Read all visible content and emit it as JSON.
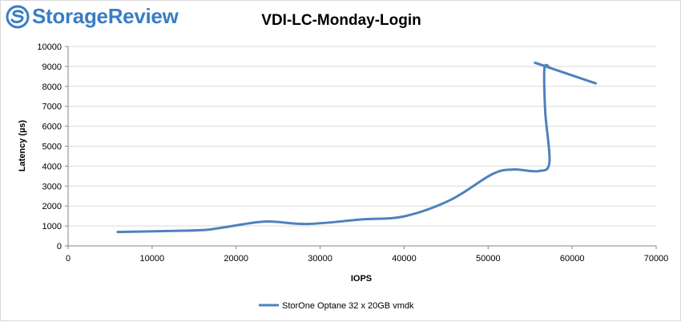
{
  "brand": {
    "name": "StorageReview",
    "logo_icon": "storagereview-logo-icon",
    "color": "#3a7dc4"
  },
  "chart_data": {
    "type": "line",
    "title": "VDI-LC-Monday-Login",
    "xlabel": "IOPS",
    "ylabel": "Latency (µs)",
    "xlim": [
      0,
      70000
    ],
    "ylim": [
      0,
      10000
    ],
    "xticks": [
      0,
      10000,
      20000,
      30000,
      40000,
      50000,
      60000,
      70000
    ],
    "yticks": [
      0,
      1000,
      2000,
      3000,
      4000,
      5000,
      6000,
      7000,
      8000,
      9000,
      10000
    ],
    "grid": "horizontal",
    "legend_position": "bottom",
    "series": [
      {
        "name": "StorOne Optane 32 x 20GB vmdk",
        "color": "#4f81bd",
        "x": [
          5900,
          11000,
          16000,
          19000,
          23500,
          28500,
          35000,
          40000,
          45500,
          50500,
          53000,
          56000,
          57300,
          56800,
          56700,
          57200,
          55800,
          62800
        ],
        "y": [
          700,
          740,
          790,
          960,
          1220,
          1100,
          1330,
          1480,
          2300,
          3600,
          3830,
          3750,
          4200,
          6700,
          8900,
          8950,
          9150,
          8150
        ]
      }
    ]
  }
}
